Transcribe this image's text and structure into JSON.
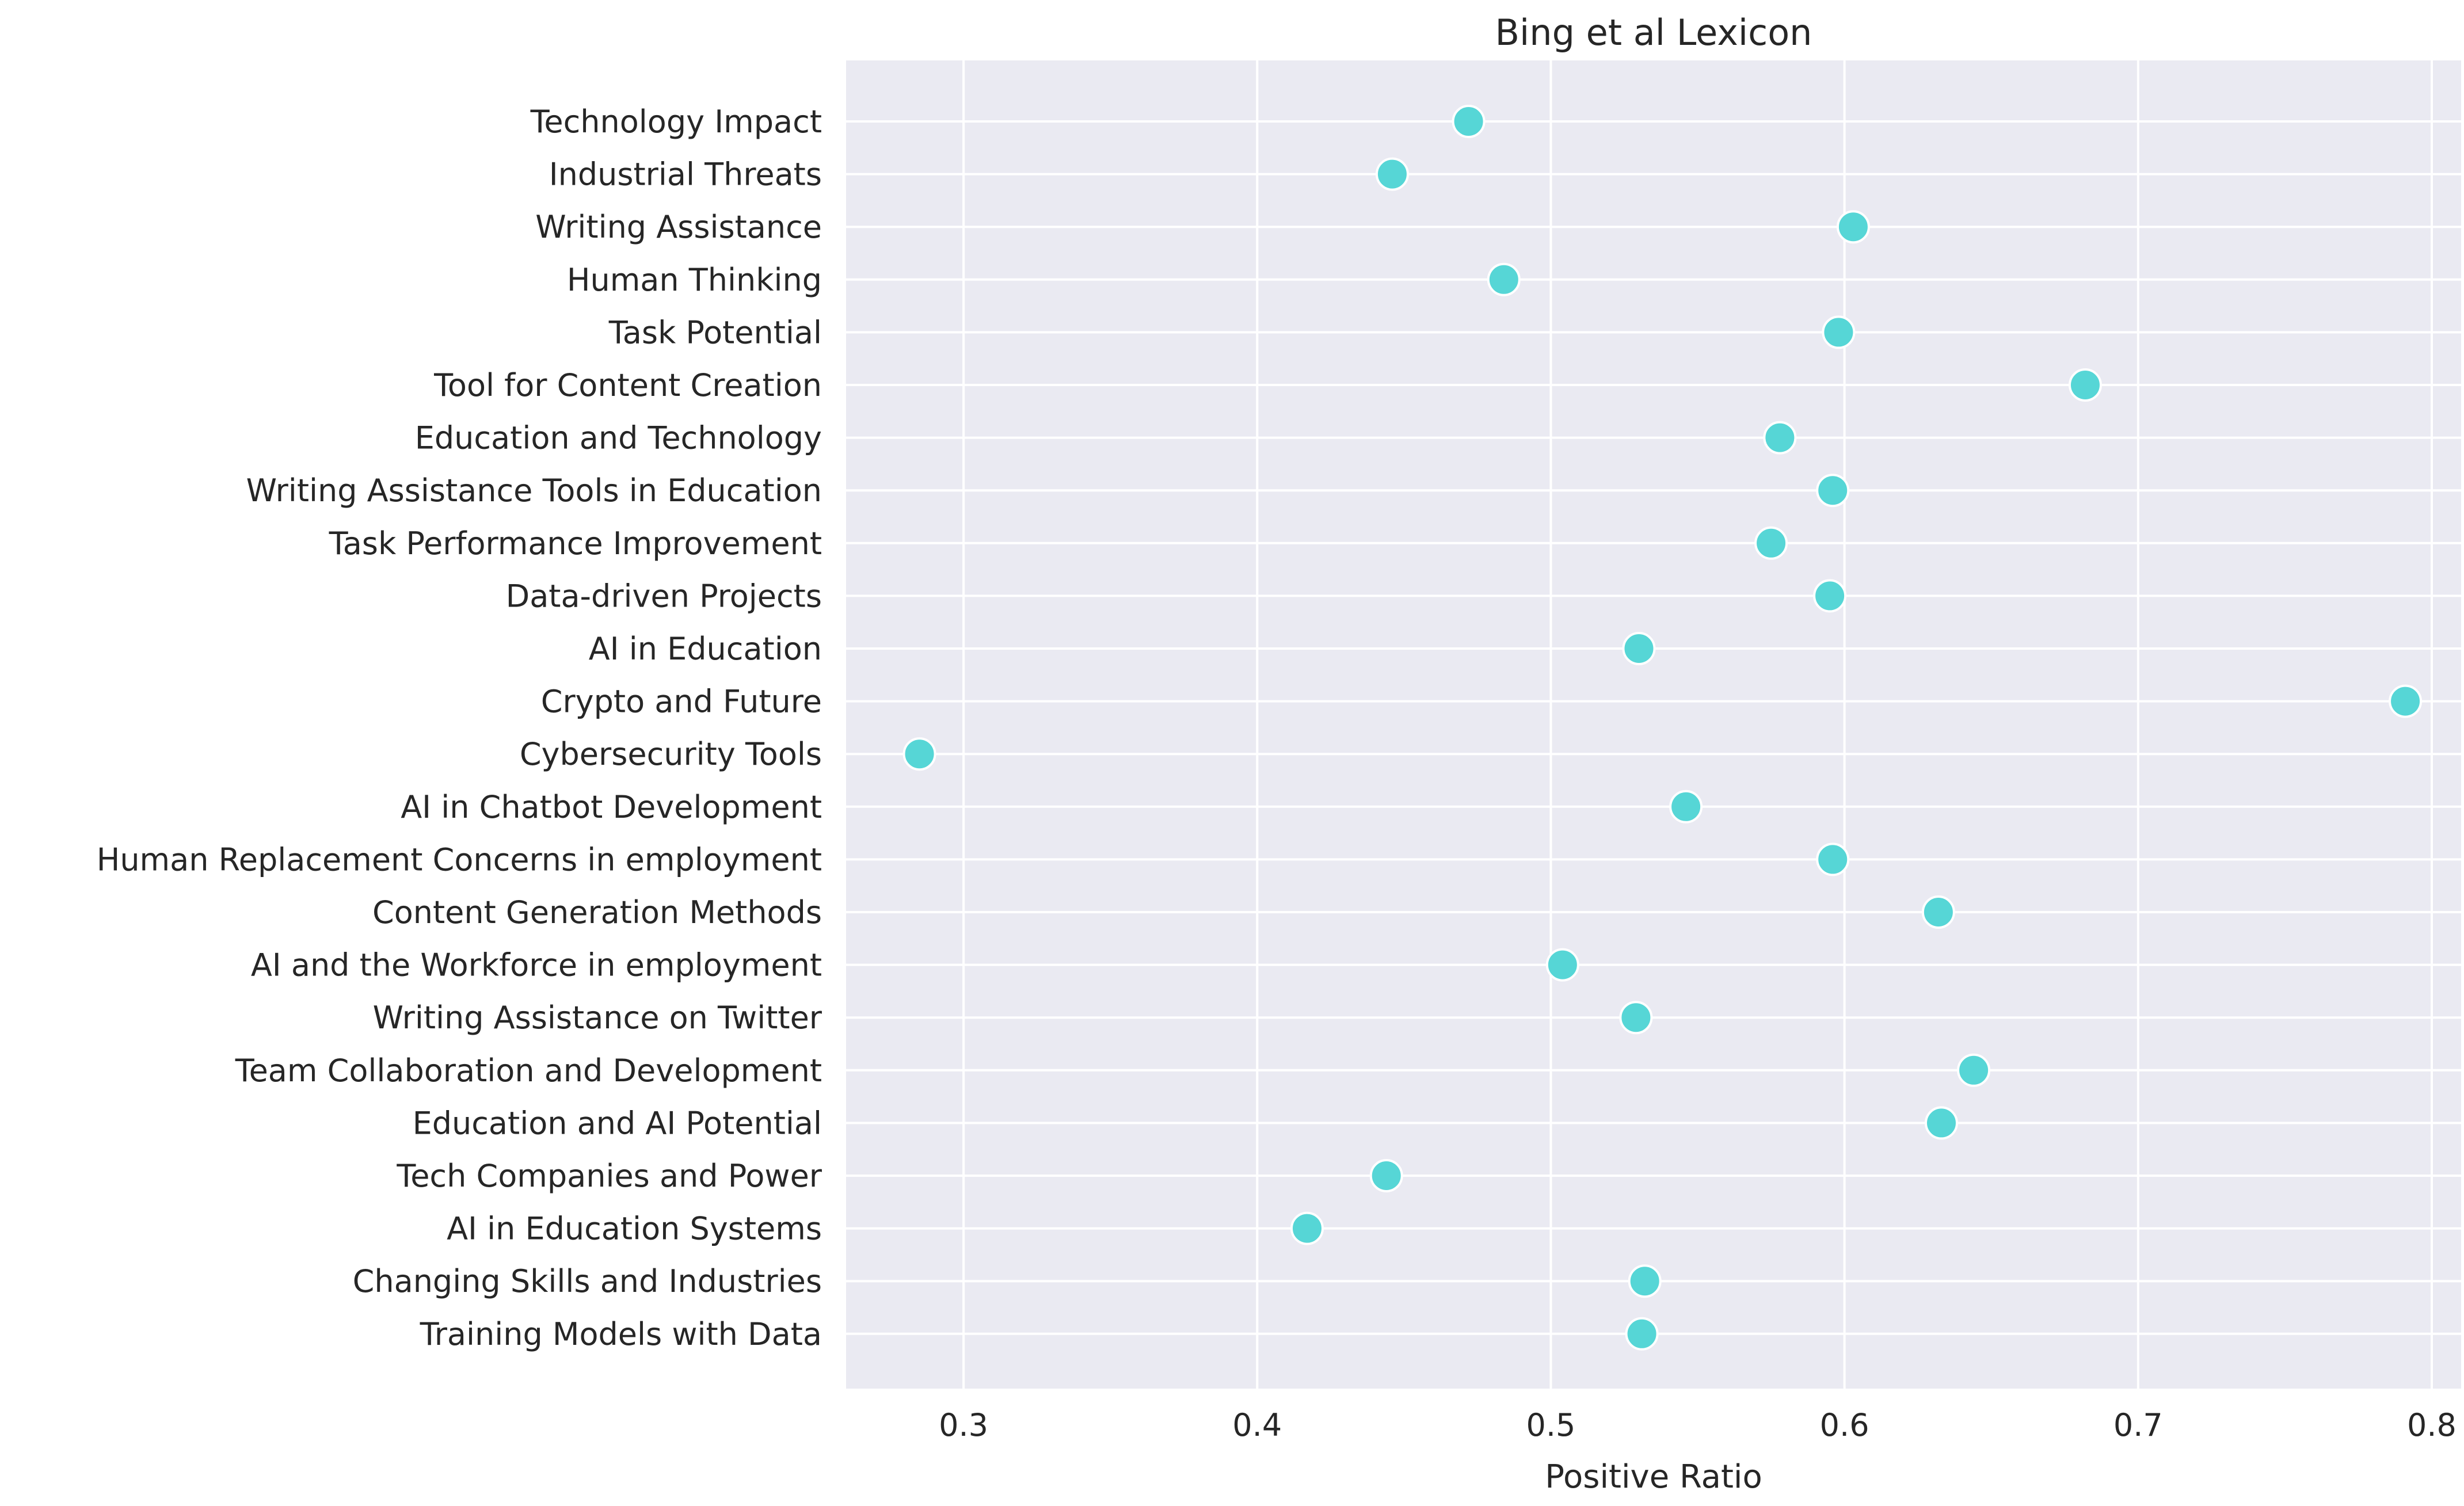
{
  "chart_data": {
    "type": "scatter",
    "title": "Bing et al Lexicon",
    "xlabel": "Positive Ratio",
    "ylabel": "",
    "xlim": [
      0.26,
      0.81
    ],
    "xticks": [
      0.3,
      0.4,
      0.5,
      0.6,
      0.7,
      0.8
    ],
    "xtick_labels": [
      "0.3",
      "0.4",
      "0.5",
      "0.6",
      "0.7",
      "0.8"
    ],
    "grid": true,
    "marker_color": "#56d6d6",
    "marker_edge": "#ffffff",
    "background": "#eaeaf2",
    "points": [
      {
        "label": "Technology Impact",
        "value": 0.472
      },
      {
        "label": "Industrial Threats",
        "value": 0.446
      },
      {
        "label": "Writing Assistance",
        "value": 0.603
      },
      {
        "label": "Human Thinking",
        "value": 0.484
      },
      {
        "label": "Task Potential",
        "value": 0.598
      },
      {
        "label": "Tool for Content Creation",
        "value": 0.682
      },
      {
        "label": "Education and Technology",
        "value": 0.578
      },
      {
        "label": "Writing Assistance Tools in Education",
        "value": 0.596
      },
      {
        "label": "Task Performance Improvement",
        "value": 0.575
      },
      {
        "label": "Data-driven Projects",
        "value": 0.595
      },
      {
        "label": "AI in Education",
        "value": 0.53
      },
      {
        "label": "Crypto and Future",
        "value": 0.791
      },
      {
        "label": "Cybersecurity Tools",
        "value": 0.285
      },
      {
        "label": "AI in Chatbot Development",
        "value": 0.546
      },
      {
        "label": "Human Replacement Concerns in employment",
        "value": 0.596
      },
      {
        "label": "Content Generation Methods",
        "value": 0.632
      },
      {
        "label": "AI and the Workforce in employment",
        "value": 0.504
      },
      {
        "label": "Writing Assistance on Twitter",
        "value": 0.529
      },
      {
        "label": "Team Collaboration and Development",
        "value": 0.644
      },
      {
        "label": "Education and AI Potential",
        "value": 0.633
      },
      {
        "label": "Tech Companies and Power",
        "value": 0.444
      },
      {
        "label": "AI in Education Systems",
        "value": 0.417
      },
      {
        "label": "Changing Skills and Industries",
        "value": 0.532
      },
      {
        "label": "Training Models with Data",
        "value": 0.531
      }
    ]
  }
}
